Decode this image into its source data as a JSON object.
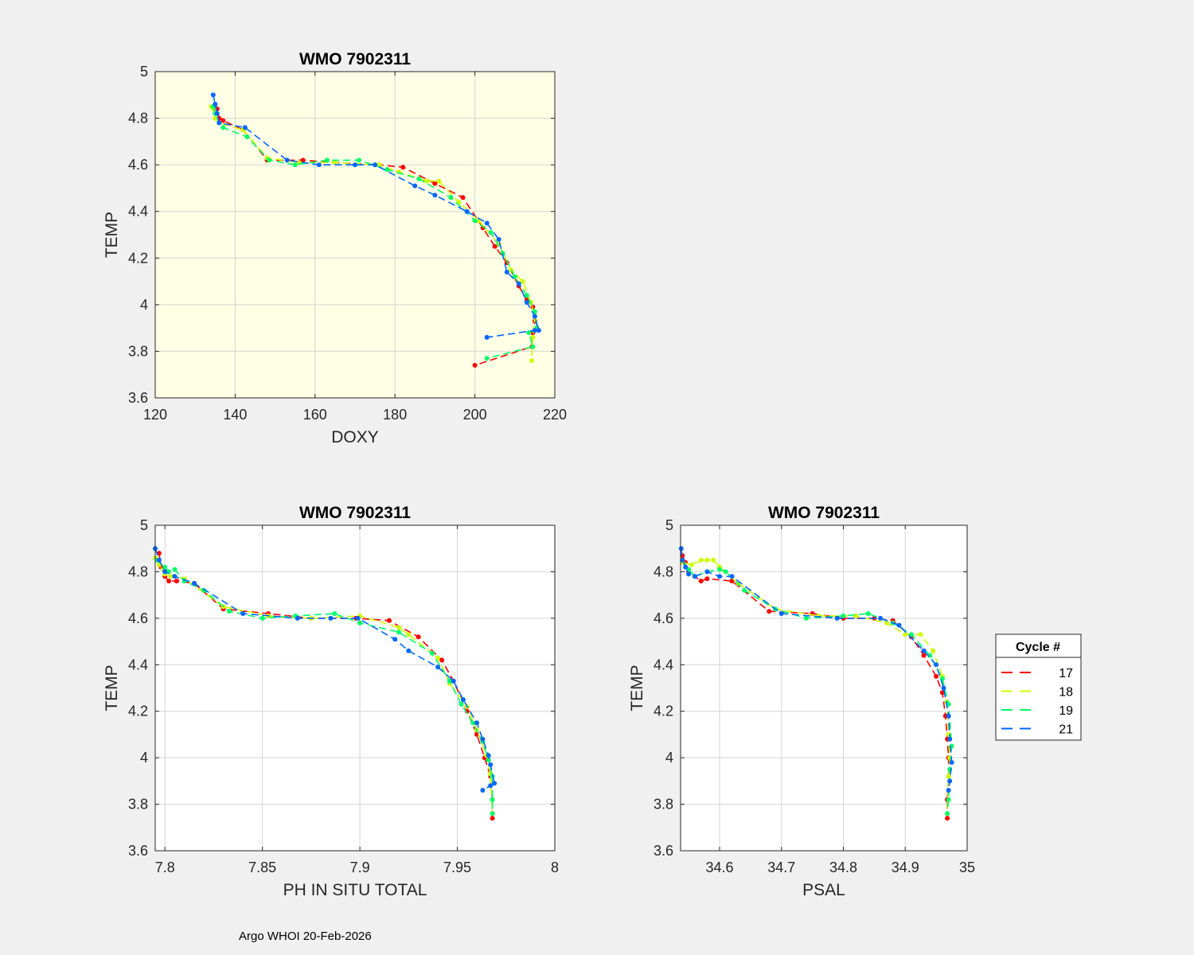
{
  "figure": {
    "footer": "Argo WHOI 20-Feb-2026"
  },
  "legend": {
    "title": "Cycle #",
    "entries": [
      {
        "label": "17",
        "color": "#ff0000"
      },
      {
        "label": "18",
        "color": "#ccff00"
      },
      {
        "label": "19",
        "color": "#00ff66"
      },
      {
        "label": "21",
        "color": "#0066ff"
      }
    ]
  },
  "chart_data": [
    {
      "id": "doxy",
      "type": "line",
      "title": "WMO 7902311",
      "xlabel": "DOXY",
      "ylabel": "TEMP",
      "xlim": [
        120,
        220
      ],
      "ylim": [
        3.6,
        5
      ],
      "xticks": [
        120,
        140,
        160,
        180,
        200,
        220
      ],
      "yticks": [
        3.6,
        3.8,
        4,
        4.2,
        4.4,
        4.6,
        4.8,
        5
      ],
      "background": "#ffffe6",
      "grid": true,
      "series": [
        {
          "name": "17",
          "color": "#ff0000",
          "x": [
            135,
            135.5,
            136,
            137,
            142,
            148,
            157,
            165,
            176,
            182,
            190,
            197,
            202,
            205,
            208,
            211,
            213,
            214.5,
            215,
            214.5,
            214.3,
            200
          ],
          "y": [
            4.86,
            4.84,
            4.8,
            4.79,
            4.75,
            4.62,
            4.62,
            4.61,
            4.6,
            4.59,
            4.52,
            4.46,
            4.33,
            4.25,
            4.18,
            4.08,
            4.02,
            3.99,
            3.93,
            3.88,
            3.82,
            3.74
          ]
        },
        {
          "name": "18",
          "color": "#ccff00",
          "x": [
            134,
            134.5,
            135,
            136,
            142,
            148,
            156,
            165,
            176,
            181,
            188,
            191,
            196,
            201,
            206,
            209,
            212,
            214,
            215,
            214.5,
            214.2
          ],
          "y": [
            4.85,
            4.84,
            4.8,
            4.78,
            4.75,
            4.63,
            4.61,
            4.61,
            4.6,
            4.57,
            4.53,
            4.53,
            4.44,
            4.36,
            4.26,
            4.15,
            4.1,
            4.01,
            3.95,
            3.86,
            3.76
          ]
        },
        {
          "name": "19",
          "color": "#00ff66",
          "x": [
            134.5,
            135,
            136,
            137,
            143,
            148.5,
            155,
            163,
            171,
            178,
            186,
            194,
            200,
            204,
            207,
            210,
            213,
            215,
            215.5,
            213.5,
            214.5,
            203
          ],
          "y": [
            4.85,
            4.82,
            4.78,
            4.76,
            4.72,
            4.62,
            4.6,
            4.62,
            4.62,
            4.58,
            4.54,
            4.46,
            4.36,
            4.31,
            4.22,
            4.12,
            4.04,
            3.97,
            3.9,
            3.88,
            3.82,
            3.77
          ]
        },
        {
          "name": "21",
          "color": "#0066ff",
          "x": [
            134.5,
            135,
            135.5,
            136,
            142.5,
            153,
            161,
            170,
            175,
            185,
            190,
            198,
            203,
            206,
            208,
            211,
            213,
            215,
            216,
            215,
            203
          ],
          "y": [
            4.9,
            4.86,
            4.82,
            4.78,
            4.76,
            4.62,
            4.6,
            4.6,
            4.6,
            4.51,
            4.47,
            4.4,
            4.35,
            4.28,
            4.14,
            4.09,
            4.01,
            3.95,
            3.89,
            3.89,
            3.86
          ]
        }
      ]
    },
    {
      "id": "ph",
      "type": "line",
      "title": "WMO 7902311",
      "xlabel": "PH IN SITU TOTAL",
      "ylabel": "TEMP",
      "xlim": [
        7.795,
        8
      ],
      "ylim": [
        3.6,
        5
      ],
      "xticks": [
        7.8,
        7.85,
        7.9,
        7.95,
        8
      ],
      "xtick_labels": [
        "7.8",
        "7.85",
        "7.9",
        "7.95",
        "8"
      ],
      "yticks": [
        3.6,
        3.8,
        4,
        4.2,
        4.4,
        4.6,
        4.8,
        5
      ],
      "background": "#ffffff",
      "grid": true,
      "series": [
        {
          "name": "17",
          "color": "#ff0000",
          "x": [
            7.797,
            7.798,
            7.8,
            7.802,
            7.806,
            7.815,
            7.83,
            7.853,
            7.875,
            7.898,
            7.915,
            7.93,
            7.942,
            7.948,
            7.955,
            7.96,
            7.964,
            7.967,
            7.968,
            7.968
          ],
          "y": [
            4.88,
            4.82,
            4.78,
            4.76,
            4.76,
            4.75,
            4.64,
            4.62,
            4.6,
            4.6,
            4.59,
            4.52,
            4.42,
            4.33,
            4.2,
            4.1,
            4.0,
            3.92,
            3.82,
            3.74
          ]
        },
        {
          "name": "18",
          "color": "#ccff00",
          "x": [
            7.795,
            7.797,
            7.8,
            7.803,
            7.81,
            7.83,
            7.853,
            7.875,
            7.9,
            7.92,
            7.925,
            7.94,
            7.946,
            7.955,
            7.96,
            7.965,
            7.967,
            7.968
          ],
          "y": [
            4.86,
            4.83,
            4.79,
            4.78,
            4.77,
            4.65,
            4.61,
            4.6,
            4.61,
            4.56,
            4.53,
            4.43,
            4.32,
            4.22,
            4.12,
            4.01,
            3.93,
            3.76
          ]
        },
        {
          "name": "19",
          "color": "#00ff66",
          "x": [
            7.796,
            7.8,
            7.802,
            7.805,
            7.81,
            7.82,
            7.833,
            7.85,
            7.867,
            7.887,
            7.9,
            7.92,
            7.937,
            7.946,
            7.952,
            7.958,
            7.963,
            7.966,
            7.968,
            7.968,
            7.968
          ],
          "y": [
            4.85,
            4.82,
            4.8,
            4.81,
            4.76,
            4.72,
            4.63,
            4.6,
            4.61,
            4.62,
            4.58,
            4.54,
            4.45,
            4.33,
            4.23,
            4.15,
            4.07,
            3.99,
            3.92,
            3.82,
            3.76
          ]
        },
        {
          "name": "21",
          "color": "#0066ff",
          "x": [
            7.795,
            7.797,
            7.8,
            7.805,
            7.815,
            7.84,
            7.868,
            7.885,
            7.899,
            7.918,
            7.925,
            7.94,
            7.948,
            7.953,
            7.96,
            7.963,
            7.966,
            7.967,
            7.969,
            7.967,
            7.963
          ],
          "y": [
            4.9,
            4.85,
            4.8,
            4.78,
            4.75,
            4.62,
            4.6,
            4.6,
            4.6,
            4.51,
            4.46,
            4.39,
            4.33,
            4.25,
            4.15,
            4.08,
            4.01,
            3.97,
            3.89,
            3.88,
            3.86
          ]
        }
      ]
    },
    {
      "id": "psal",
      "type": "line",
      "title": "WMO 7902311",
      "xlabel": "PSAL",
      "ylabel": "TEMP",
      "xlim": [
        34.537,
        35
      ],
      "ylim": [
        3.6,
        5
      ],
      "xticks": [
        34.6,
        34.7,
        34.8,
        34.9,
        35
      ],
      "xtick_labels": [
        "34.6",
        "34.7",
        "34.8",
        "34.9",
        "35"
      ],
      "yticks": [
        3.6,
        3.8,
        4,
        4.2,
        4.4,
        4.6,
        4.8,
        5
      ],
      "background": "#ffffff",
      "grid": true,
      "series": [
        {
          "name": "17",
          "color": "#ff0000",
          "x": [
            34.54,
            34.545,
            34.55,
            34.56,
            34.57,
            34.58,
            34.62,
            34.68,
            34.75,
            34.8,
            34.85,
            34.88,
            34.91,
            34.93,
            34.95,
            34.96,
            34.965,
            34.968,
            34.97,
            34.97,
            34.968,
            34.968
          ],
          "y": [
            4.87,
            4.84,
            4.8,
            4.78,
            4.76,
            4.77,
            4.76,
            4.63,
            4.62,
            4.6,
            4.6,
            4.59,
            4.52,
            4.44,
            4.35,
            4.28,
            4.18,
            4.08,
            4.0,
            3.92,
            3.82,
            3.74
          ]
        },
        {
          "name": "18",
          "color": "#ccff00",
          "x": [
            34.54,
            34.555,
            34.57,
            34.58,
            34.59,
            34.6,
            34.63,
            34.69,
            34.76,
            34.82,
            34.87,
            34.9,
            34.925,
            34.945,
            34.96,
            34.967,
            34.97,
            34.972,
            34.97,
            34.968
          ],
          "y": [
            4.84,
            4.83,
            4.85,
            4.85,
            4.85,
            4.82,
            4.75,
            4.64,
            4.61,
            4.61,
            4.58,
            4.53,
            4.53,
            4.46,
            4.35,
            4.24,
            4.1,
            4.0,
            3.92,
            3.76
          ]
        },
        {
          "name": "19",
          "color": "#00ff66",
          "x": [
            34.54,
            34.55,
            34.56,
            34.58,
            34.6,
            34.61,
            34.64,
            34.69,
            34.74,
            34.8,
            34.84,
            34.88,
            34.91,
            34.94,
            34.96,
            34.97,
            34.975,
            34.972,
            34.97,
            34.968
          ],
          "y": [
            4.85,
            4.81,
            4.78,
            4.8,
            4.81,
            4.8,
            4.72,
            4.64,
            4.6,
            4.61,
            4.62,
            4.58,
            4.53,
            4.44,
            4.34,
            4.23,
            4.05,
            3.95,
            3.82,
            3.76
          ]
        },
        {
          "name": "21",
          "color": "#0066ff",
          "x": [
            34.538,
            34.54,
            34.545,
            34.55,
            34.56,
            34.58,
            34.6,
            34.62,
            34.7,
            34.79,
            34.86,
            34.89,
            34.93,
            34.95,
            34.962,
            34.97,
            34.972,
            34.975,
            34.972,
            34.97
          ],
          "y": [
            4.9,
            4.85,
            4.82,
            4.79,
            4.78,
            4.8,
            4.78,
            4.78,
            4.62,
            4.6,
            4.6,
            4.57,
            4.46,
            4.4,
            4.3,
            4.18,
            4.08,
            3.98,
            3.9,
            3.86
          ]
        }
      ]
    }
  ]
}
